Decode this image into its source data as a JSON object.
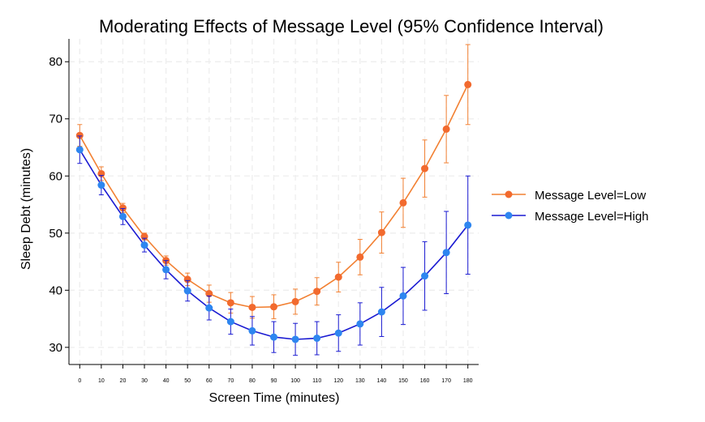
{
  "chart_data": {
    "type": "line",
    "title": "Moderating Effects of Message Level (95% Confidence Interval)",
    "xlabel": "Screen Time (minutes)",
    "ylabel": "Sleep Debt (minutes)",
    "x": [
      0,
      10,
      20,
      30,
      40,
      50,
      60,
      70,
      80,
      90,
      100,
      110,
      120,
      130,
      140,
      150,
      160,
      170,
      180
    ],
    "xticks": [
      "0",
      "10",
      "20",
      "30",
      "40",
      "50",
      "60",
      "70",
      "80",
      "90",
      "100",
      "110",
      "120",
      "130",
      "140",
      "150",
      "160",
      "170",
      "180"
    ],
    "yticks": [
      "30",
      "40",
      "50",
      "60",
      "70",
      "80"
    ],
    "xlim": [
      -5,
      185
    ],
    "ylim": [
      27,
      84
    ],
    "grid": true,
    "legend_position": "right",
    "series": [
      {
        "name": "Message Level=Low",
        "color": "#f28032",
        "marker_color": "#f26a2e",
        "values": [
          67.1,
          60.4,
          54.4,
          49.4,
          45.2,
          41.9,
          39.4,
          37.8,
          37.0,
          37.1,
          38.0,
          39.8,
          42.3,
          45.8,
          50.1,
          55.3,
          61.3,
          68.2,
          76.0
        ],
        "ci_low": [
          65.2,
          59.2,
          53.6,
          48.8,
          44.4,
          40.8,
          37.9,
          36.0,
          35.1,
          35.0,
          35.8,
          37.4,
          39.7,
          42.7,
          46.5,
          51.0,
          56.3,
          62.3,
          69.0
        ],
        "ci_high": [
          69.0,
          61.6,
          55.2,
          50.0,
          46.0,
          43.0,
          40.9,
          39.6,
          38.9,
          39.2,
          40.2,
          42.2,
          44.9,
          48.9,
          53.7,
          59.6,
          66.3,
          74.1,
          83.0
        ]
      },
      {
        "name": "Message Level=High",
        "color": "#1a1ad2",
        "marker_color": "#2e86f0",
        "values": [
          64.6,
          58.4,
          52.9,
          47.9,
          43.6,
          39.9,
          36.9,
          34.5,
          32.9,
          31.8,
          31.4,
          31.6,
          32.5,
          34.1,
          36.2,
          39.0,
          42.5,
          46.6,
          51.4
        ],
        "ci_low": [
          62.2,
          56.7,
          51.5,
          46.7,
          42.0,
          38.1,
          34.8,
          32.3,
          30.4,
          29.1,
          28.6,
          28.7,
          29.3,
          30.4,
          31.9,
          34.0,
          36.5,
          39.4,
          42.8
        ],
        "ci_high": [
          67.0,
          60.1,
          54.3,
          49.1,
          45.2,
          41.7,
          39.0,
          36.7,
          35.4,
          34.5,
          34.2,
          34.5,
          35.7,
          37.8,
          40.5,
          44.0,
          48.5,
          53.8,
          60.0
        ]
      }
    ]
  }
}
